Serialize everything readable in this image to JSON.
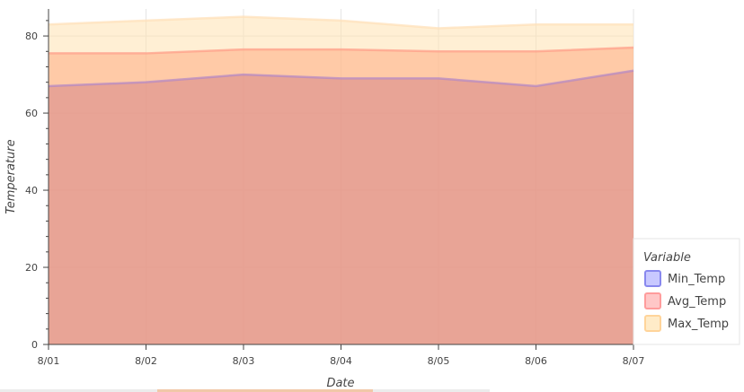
{
  "chart_data": {
    "type": "area",
    "title": "",
    "xlabel": "Date",
    "ylabel": "Temperature",
    "categories": [
      "8/01",
      "8/02",
      "8/03",
      "8/04",
      "8/05",
      "8/06",
      "8/07"
    ],
    "ylim": [
      0,
      87
    ],
    "yticks": [
      0,
      20,
      40,
      60,
      80
    ],
    "grid": true,
    "legend": {
      "title": "Variable",
      "placement": "right-bottom",
      "entries": [
        "Min_Temp",
        "Avg_Temp",
        "Max_Temp"
      ]
    },
    "series": [
      {
        "name": "Min_Temp",
        "values": [
          67,
          68,
          70,
          69,
          69,
          67,
          71
        ],
        "color": "#c8a0e8"
      },
      {
        "name": "Avg_Temp",
        "values": [
          75.5,
          75.5,
          76.5,
          76.5,
          76,
          76,
          77
        ],
        "color": "#ffb58c"
      },
      {
        "name": "Max_Temp",
        "values": [
          83,
          84,
          85,
          84,
          82,
          83,
          83
        ],
        "color": "#ffe5b4"
      }
    ]
  }
}
